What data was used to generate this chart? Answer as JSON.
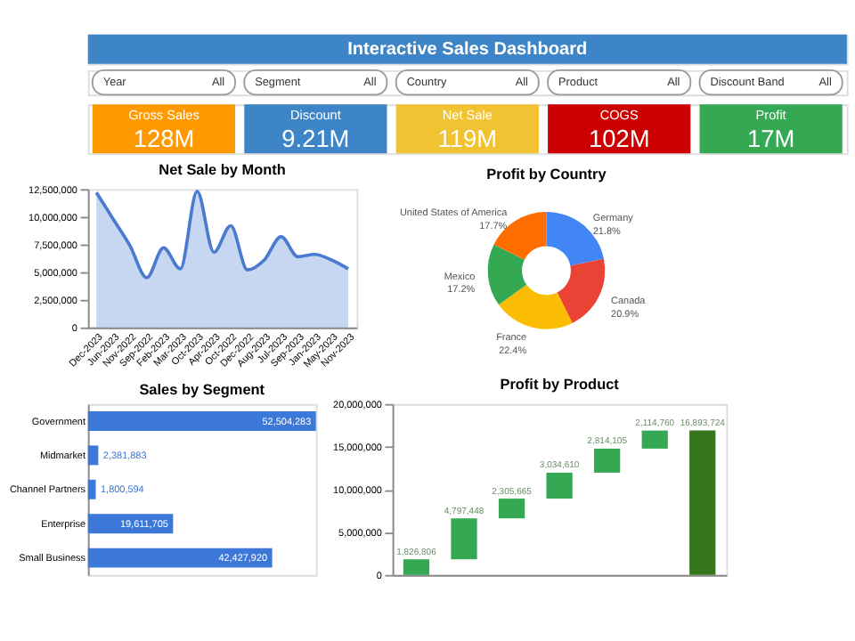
{
  "chart_data": [
    {
      "type": "other",
      "title": "Interactive Sales Dashboard",
      "color": "#3d85c6",
      "categories": [
        "Year",
        "Segment",
        "Country",
        "Product",
        "Discount Band"
      ],
      "value_labels": [
        "All",
        "All",
        "All",
        "All",
        "All"
      ]
    },
    {
      "type": "other",
      "categories": [
        "Gross Sales",
        "Discount",
        "Net Sale",
        "COGS",
        "Profit"
      ],
      "value_labels": [
        "128M",
        "9.21M",
        "119M",
        "102M",
        "17M"
      ],
      "colors": [
        "#ff9900",
        "#3d85c6",
        "#f1c232",
        "#cc0000",
        "#34a853"
      ]
    },
    {
      "type": "area",
      "title": "Net Sale by Month",
      "categories": [
        "Dec-2023",
        "Jun-2023",
        "Nov-2022",
        "Sep-2022",
        "Feb-2023",
        "Mar-2023",
        "Oct-2023",
        "Apr-2023",
        "Oct-2022",
        "Dec-2022",
        "Aug-2023",
        "Jul-2023",
        "Sep-2023",
        "Jan-2023",
        "May-2023",
        "Nov-2023"
      ],
      "values": [
        12200000,
        9800000,
        7400000,
        4500000,
        7200000,
        5300000,
        12300000,
        6800000,
        9200000,
        5200000,
        6100000,
        8200000,
        6400000,
        6600000,
        6100000,
        5300000
      ],
      "color": "#4a7bd0",
      "ylim": [
        0,
        12500000
      ],
      "yticks": [
        0,
        {
          "value": 2500000,
          "label": "2,500,000"
        },
        {
          "value": 5000000,
          "label": "5,000,000"
        },
        {
          "value": 7500000,
          "label": "7,500,000"
        },
        {
          "value": 10000000,
          "label": "10,000,000"
        },
        {
          "value": 12500000,
          "label": "12,500,000"
        }
      ],
      "grid": false
    },
    {
      "type": "donut",
      "title": "Profit by Country",
      "categories": [
        "Germany",
        "Canada",
        "France",
        "Mexico",
        "United States of America"
      ],
      "values": [
        21.8,
        20.9,
        22.4,
        17.2,
        17.7
      ],
      "value_labels": [
        "21.8%",
        "20.9%",
        "22.4%",
        "17.2%",
        "17.7%"
      ],
      "colors": [
        "#4285f4",
        "#ea4335",
        "#fbbc04",
        "#34a853",
        "#ff6d01"
      ]
    },
    {
      "type": "bar",
      "orientation": "horizontal",
      "title": "Sales by Segment",
      "categories": [
        "Government",
        "Midmarket",
        "Channel Partners",
        "Enterprise",
        "Small Business"
      ],
      "values": [
        52504283,
        2381883,
        1800594,
        19611705,
        42427920
      ],
      "value_labels": [
        "52,504,283",
        "2,381,883",
        "1,800,594",
        "19,611,705",
        "42,427,920"
      ],
      "color": "#3c78d8"
    },
    {
      "type": "bar",
      "title": "Profit by Product",
      "categories": [
        null,
        null,
        null,
        null,
        null,
        null,
        null
      ],
      "base": [
        0,
        1826806,
        6624254,
        8929919,
        11964529,
        14778634,
        0
      ],
      "values": [
        1826806,
        4797448,
        2305665,
        3034610,
        2814105,
        2114760,
        16893724
      ],
      "colors": [
        "#34a853",
        "#34a853",
        "#34a853",
        "#34a853",
        "#34a853",
        "#34a853",
        "#38761d"
      ],
      "value_labels": [
        "1,826,806",
        "4,797,448",
        "2,305,665",
        "3,034,610",
        "2,814,105",
        "2,114,760",
        "16,893,724"
      ],
      "ylim": [
        0,
        20000000
      ],
      "yticks": [
        0,
        {
          "value": 5000000,
          "label": "5,000,000"
        },
        {
          "value": 10000000,
          "label": "10,000,000"
        },
        {
          "value": 15000000,
          "label": "15,000,000"
        },
        {
          "value": 20000000,
          "label": "20,000,000"
        }
      ],
      "tick_labels": "y"
    }
  ]
}
